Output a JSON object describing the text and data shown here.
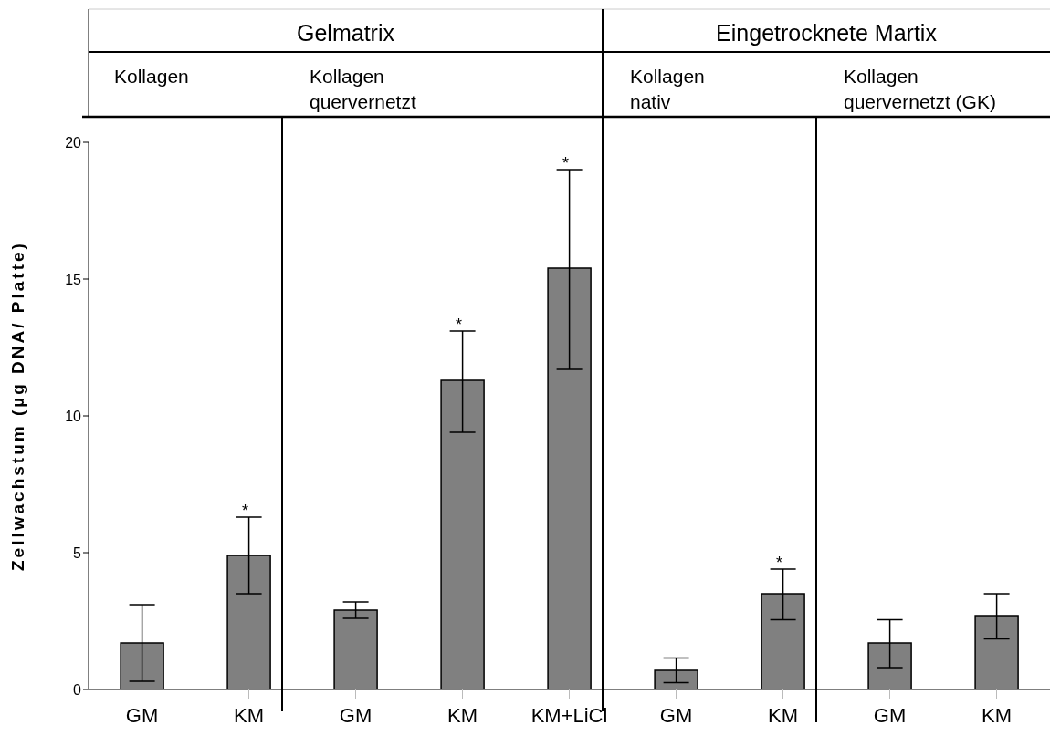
{
  "chart_data": {
    "type": "bar",
    "ylabel": "Zellwachstum (µg DNA/ Platte)",
    "categories": [
      "GM",
      "KM",
      "GM",
      "KM",
      "KM+LiCl",
      "GM",
      "KM",
      "GM",
      "KM"
    ],
    "values": [
      1.7,
      4.9,
      2.9,
      11.3,
      15.4,
      0.7,
      3.5,
      1.7,
      2.7
    ],
    "errors": [
      [
        0.3,
        3.1
      ],
      [
        3.5,
        6.3
      ],
      [
        2.6,
        3.2
      ],
      [
        9.4,
        13.1
      ],
      [
        11.7,
        19.0
      ],
      [
        0.25,
        1.15
      ],
      [
        2.55,
        4.4
      ],
      [
        0.8,
        2.55
      ],
      [
        1.85,
        3.5
      ]
    ],
    "color": "#808080",
    "ylim": [
      0,
      20
    ],
    "yticks": [
      0,
      5,
      10,
      15,
      20
    ],
    "grid": false,
    "legend": false,
    "annotations": [
      "Gelmatrix",
      "Eingetrocknete Martix",
      "Kollagen",
      "Kollagen\nquervernetzt",
      "Kollagen\nnativ",
      "Kollagen\nquervernetzt (GK)",
      {
        "text": "*",
        "x": "KM",
        "y": 6.3
      },
      {
        "text": "*",
        "x": "KM+LiCl",
        "y": 19.0
      },
      "*",
      "*"
    ]
  }
}
